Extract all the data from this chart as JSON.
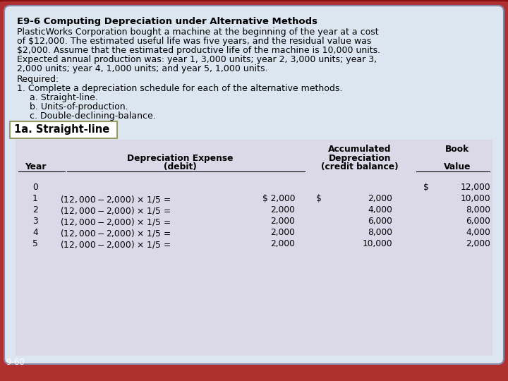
{
  "title_bold": "E9-6 Computing Depreciation under Alternative Methods",
  "description_lines": [
    "PlasticWorks Corporation bought a machine at the beginning of the year at a cost",
    "of $12,000. The estimated useful life was five years, and the residual value was",
    "$2,000. Assume that the estimated productive life of the machine is 10,000 units.",
    "Expected annual production was: year 1, 3,000 units; year 2, 3,000 units; year 3,",
    "2,000 units; year 4, 1,000 units; and year 5, 1,000 units."
  ],
  "required_line": "Required:",
  "numbered_line": "1. Complete a depreciation schedule for each of the alternative methods.",
  "sub_items": [
    "a. Straight-line.",
    "b. Units-of-production.",
    "c. Double-declining-balance."
  ],
  "section_label": "1a. Straight-line",
  "outer_bg": "#b03030",
  "inner_bg": "#dce6f1",
  "table_bg": "#dbd8e8",
  "text_color": "#000000",
  "label_bg": "#ffffff",
  "footer_text": "9-60",
  "font_size_body": 9.0,
  "font_size_title": 9.5,
  "font_size_table": 8.8,
  "font_size_label": 10.5,
  "row_data": [
    [
      "0",
      "",
      "",
      "",
      "",
      "$",
      "12,000"
    ],
    [
      "1",
      "($12,000 - $2,000) x 1/5 =",
      "$ 2,000",
      "$",
      "2,000",
      "",
      "10,000"
    ],
    [
      "2",
      "($12,000 - $2,000) x 1/5 =",
      "2,000",
      "",
      "4,000",
      "",
      "8,000"
    ],
    [
      "3",
      "($12,000 - $2,000) x 1/5 =",
      "2,000",
      "",
      "6,000",
      "",
      "6,000"
    ],
    [
      "4",
      "($12,000 - $2,000) x 1/5 =",
      "2,000",
      "",
      "8,000",
      "",
      "4,000"
    ],
    [
      "5",
      "($12,000 - $2,000) x 1/5 =",
      "2,000",
      "",
      "10,000",
      "",
      "2,000"
    ]
  ]
}
